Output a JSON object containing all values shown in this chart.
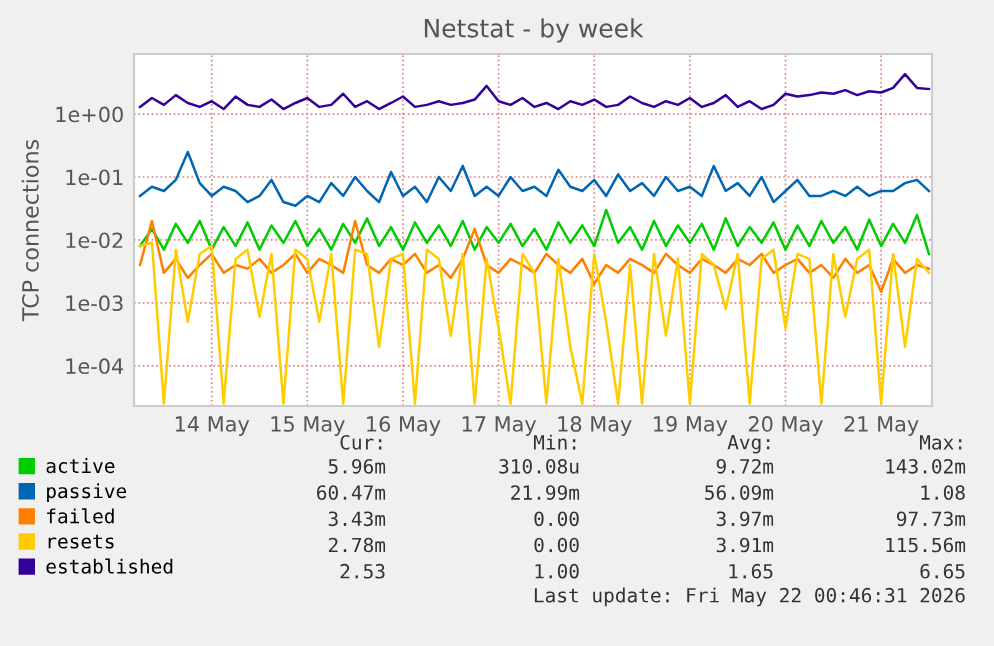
{
  "chart_data": {
    "type": "line",
    "title": "Netstat - by week",
    "ylabel": "TCP connections",
    "x": [
      "2026-05-13T18:00",
      "2026-05-13T21:00",
      "2026-05-14T00:00",
      "2026-05-14T03:00",
      "2026-05-14T06:00",
      "2026-05-14T09:00",
      "2026-05-14T12:00",
      "2026-05-14T15:00",
      "2026-05-14T18:00",
      "2026-05-14T21:00",
      "2026-05-15T00:00",
      "2026-05-15T03:00",
      "2026-05-15T06:00",
      "2026-05-15T09:00",
      "2026-05-15T12:00",
      "2026-05-15T15:00",
      "2026-05-15T18:00",
      "2026-05-15T21:00",
      "2026-05-16T00:00",
      "2026-05-16T03:00",
      "2026-05-16T06:00",
      "2026-05-16T09:00",
      "2026-05-16T12:00",
      "2026-05-16T15:00",
      "2026-05-16T18:00",
      "2026-05-16T21:00",
      "2026-05-17T00:00",
      "2026-05-17T03:00",
      "2026-05-17T06:00",
      "2026-05-17T09:00",
      "2026-05-17T12:00",
      "2026-05-17T15:00",
      "2026-05-17T18:00",
      "2026-05-17T21:00",
      "2026-05-18T00:00",
      "2026-05-18T03:00",
      "2026-05-18T06:00",
      "2026-05-18T09:00",
      "2026-05-18T12:00",
      "2026-05-18T15:00",
      "2026-05-18T18:00",
      "2026-05-18T21:00",
      "2026-05-19T00:00",
      "2026-05-19T03:00",
      "2026-05-19T06:00",
      "2026-05-19T09:00",
      "2026-05-19T12:00",
      "2026-05-19T15:00",
      "2026-05-19T18:00",
      "2026-05-19T21:00",
      "2026-05-20T00:00",
      "2026-05-20T03:00",
      "2026-05-20T06:00",
      "2026-05-20T09:00",
      "2026-05-20T12:00",
      "2026-05-20T15:00",
      "2026-05-20T18:00",
      "2026-05-20T21:00",
      "2026-05-21T00:00",
      "2026-05-21T03:00",
      "2026-05-21T06:00",
      "2026-05-21T09:00",
      "2026-05-21T12:00",
      "2026-05-21T15:00",
      "2026-05-21T18:00",
      "2026-05-21T21:00",
      "2026-05-22T00:00"
    ],
    "series": [
      {
        "name": "active",
        "color": "#00cc00",
        "values": [
          0.008,
          0.015,
          0.007,
          0.018,
          0.009,
          0.02,
          0.007,
          0.016,
          0.008,
          0.019,
          0.007,
          0.017,
          0.009,
          0.02,
          0.008,
          0.015,
          0.007,
          0.018,
          0.009,
          0.022,
          0.008,
          0.016,
          0.007,
          0.019,
          0.009,
          0.017,
          0.008,
          0.02,
          0.007,
          0.016,
          0.009,
          0.018,
          0.008,
          0.015,
          0.007,
          0.019,
          0.009,
          0.017,
          0.008,
          0.03,
          0.009,
          0.016,
          0.007,
          0.02,
          0.008,
          0.017,
          0.009,
          0.018,
          0.007,
          0.022,
          0.008,
          0.016,
          0.009,
          0.019,
          0.007,
          0.017,
          0.008,
          0.02,
          0.009,
          0.016,
          0.007,
          0.021,
          0.008,
          0.018,
          0.009,
          0.025,
          0.006
        ]
      },
      {
        "name": "passive",
        "color": "#0066b3",
        "values": [
          0.05,
          0.07,
          0.06,
          0.09,
          0.25,
          0.08,
          0.05,
          0.07,
          0.06,
          0.04,
          0.05,
          0.09,
          0.04,
          0.035,
          0.05,
          0.04,
          0.08,
          0.05,
          0.1,
          0.06,
          0.04,
          0.12,
          0.05,
          0.07,
          0.04,
          0.1,
          0.06,
          0.15,
          0.05,
          0.07,
          0.05,
          0.1,
          0.06,
          0.07,
          0.05,
          0.13,
          0.07,
          0.06,
          0.09,
          0.05,
          0.11,
          0.06,
          0.08,
          0.05,
          0.1,
          0.06,
          0.07,
          0.05,
          0.15,
          0.06,
          0.08,
          0.05,
          0.1,
          0.04,
          0.06,
          0.09,
          0.05,
          0.05,
          0.06,
          0.05,
          0.07,
          0.05,
          0.06,
          0.06,
          0.08,
          0.09,
          0.06
        ]
      },
      {
        "name": "failed",
        "color": "#ff8000",
        "values": [
          0.004,
          0.02,
          0.003,
          0.005,
          0.0025,
          0.004,
          0.006,
          0.003,
          0.004,
          0.0035,
          0.005,
          0.003,
          0.004,
          0.006,
          0.003,
          0.005,
          0.004,
          0.003,
          0.02,
          0.004,
          0.003,
          0.005,
          0.004,
          0.006,
          0.003,
          0.004,
          0.0025,
          0.005,
          0.015,
          0.004,
          0.003,
          0.005,
          0.004,
          0.003,
          0.006,
          0.004,
          0.003,
          0.005,
          0.002,
          0.004,
          0.003,
          0.005,
          0.004,
          0.003,
          0.006,
          0.004,
          0.003,
          0.005,
          0.004,
          0.003,
          0.005,
          0.004,
          0.006,
          0.003,
          0.004,
          0.005,
          0.003,
          0.004,
          0.0025,
          0.005,
          0.003,
          0.004,
          0.0015,
          0.005,
          0.003,
          0.004,
          0.0035
        ]
      },
      {
        "name": "resets",
        "color": "#ffcc00",
        "values": [
          0.008,
          0.009,
          2.5e-05,
          0.007,
          0.0005,
          0.006,
          0.008,
          2.5e-05,
          0.005,
          0.007,
          0.0006,
          0.006,
          2.5e-05,
          0.007,
          0.005,
          0.0005,
          0.006,
          2.5e-05,
          0.007,
          0.006,
          0.0002,
          0.005,
          0.006,
          2.5e-05,
          0.007,
          0.005,
          0.0003,
          0.006,
          2.5e-05,
          0.005,
          0.0004,
          2.5e-05,
          0.006,
          0.003,
          2.5e-05,
          0.005,
          0.0002,
          2.5e-05,
          0.006,
          0.0005,
          2.5e-05,
          0.004,
          2.5e-05,
          0.006,
          0.0003,
          0.005,
          2.5e-05,
          0.006,
          0.004,
          0.0008,
          0.006,
          2.5e-05,
          0.005,
          0.007,
          0.0004,
          0.006,
          0.005,
          2.5e-05,
          0.006,
          0.0006,
          0.005,
          0.007,
          2.5e-05,
          0.006,
          0.0002,
          0.005,
          0.003
        ]
      },
      {
        "name": "established",
        "color": "#330099",
        "values": [
          1.3,
          1.8,
          1.4,
          2.0,
          1.5,
          1.3,
          1.6,
          1.2,
          1.9,
          1.4,
          1.3,
          1.7,
          1.2,
          1.5,
          1.8,
          1.3,
          1.4,
          2.1,
          1.3,
          1.6,
          1.2,
          1.5,
          1.9,
          1.3,
          1.4,
          1.6,
          1.4,
          1.5,
          1.7,
          2.8,
          1.6,
          1.4,
          1.8,
          1.3,
          1.5,
          1.2,
          1.6,
          1.4,
          1.7,
          1.3,
          1.4,
          1.9,
          1.5,
          1.3,
          1.6,
          1.4,
          1.8,
          1.3,
          1.5,
          2.0,
          1.3,
          1.6,
          1.2,
          1.4,
          2.1,
          1.9,
          2.0,
          2.2,
          2.1,
          2.4,
          2.0,
          2.3,
          2.2,
          2.6,
          4.3,
          2.6,
          2.5
        ]
      }
    ],
    "log": "y",
    "ylim": [
      2.3e-05,
      9
    ],
    "yticks": [
      {
        "value": 0.0001,
        "label": "1e-04"
      },
      {
        "value": 0.001,
        "label": "1e-03"
      },
      {
        "value": 0.01,
        "label": "1e-02"
      },
      {
        "value": 0.1,
        "label": "1e-01"
      },
      {
        "value": 1,
        "label": "1e+00"
      }
    ],
    "xlim": [
      "2026-05-13T16:30",
      "2026-05-22T00:46"
    ],
    "xticks": [
      {
        "value": "2026-05-14T12:00",
        "label": "14 May"
      },
      {
        "value": "2026-05-15T12:00",
        "label": "15 May"
      },
      {
        "value": "2026-05-16T12:00",
        "label": "16 May"
      },
      {
        "value": "2026-05-17T12:00",
        "label": "17 May"
      },
      {
        "value": "2026-05-18T12:00",
        "label": "18 May"
      },
      {
        "value": "2026-05-19T12:00",
        "label": "19 May"
      },
      {
        "value": "2026-05-20T12:00",
        "label": "20 May"
      },
      {
        "value": "2026-05-21T12:00",
        "label": "21 May"
      }
    ],
    "grid": true,
    "legend": "bottom",
    "line_style": "solid",
    "marker": "none",
    "annotations": [
      "Cur:",
      "Min:",
      "Avg:",
      "Max:",
      "5.96m",
      "310.08u",
      "9.72m",
      "143.02m",
      "60.47m",
      "21.99m",
      "56.09m",
      "1.08",
      "3.43m",
      "0.00",
      "3.97m",
      "97.73m",
      "2.78m",
      "0.00",
      "3.91m",
      "115.56m",
      "2.53",
      "1.00",
      "1.65",
      "6.65",
      "Last update: Fri May 22 00:46:31 2026"
    ]
  }
}
